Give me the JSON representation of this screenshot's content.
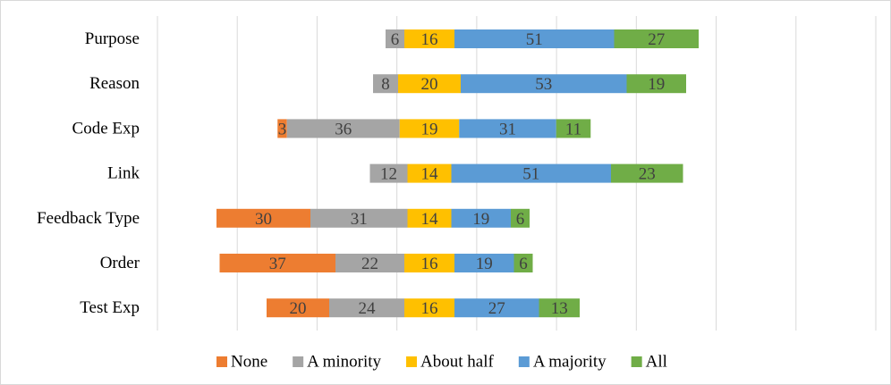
{
  "chart_data": {
    "type": "bar",
    "orientation": "horizontal",
    "stacked": true,
    "layout": "diverging",
    "title": "",
    "xlabel": "",
    "ylabel": "",
    "grid": true,
    "legend_position": "bottom",
    "categories": [
      "Purpose",
      "Reason",
      "Code Exp",
      "Link",
      "Feedback Type",
      "Order",
      "Test Exp"
    ],
    "series": [
      {
        "name": "None",
        "color": "#ED7D31",
        "values": [
          0,
          0,
          3,
          0,
          30,
          37,
          20
        ]
      },
      {
        "name": "A minority",
        "color": "#A5A5A5",
        "values": [
          6,
          8,
          36,
          12,
          31,
          22,
          24
        ]
      },
      {
        "name": "About half",
        "color": "#FFC000",
        "values": [
          16,
          20,
          19,
          14,
          14,
          16,
          16
        ]
      },
      {
        "name": "A majority",
        "color": "#5B9BD5",
        "values": [
          51,
          53,
          31,
          51,
          19,
          19,
          27
        ]
      },
      {
        "name": "All",
        "color": "#70AD47",
        "values": [
          27,
          19,
          11,
          23,
          6,
          6,
          13
        ]
      }
    ],
    "center_series": "About half"
  }
}
